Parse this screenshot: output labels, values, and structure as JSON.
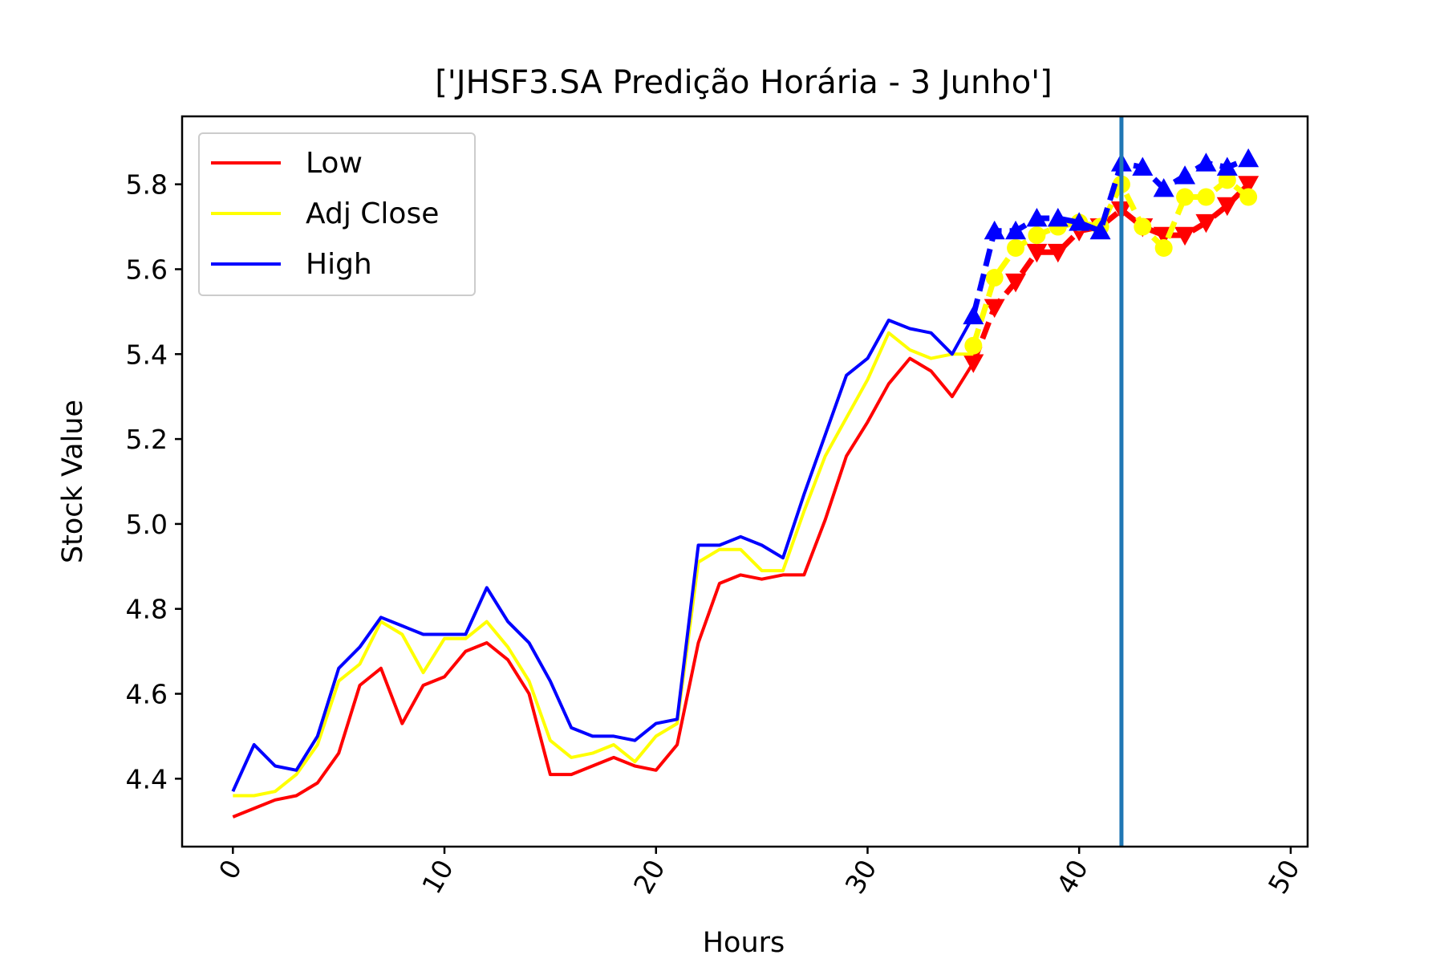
{
  "chart_data": {
    "type": "line",
    "title": "['JHSF3.SA Predição Horária - 3 Junho']",
    "xlabel": "Hours",
    "ylabel": "Stock Value",
    "xlim": [
      -2.4,
      50.8
    ],
    "ylim": [
      4.24,
      5.96
    ],
    "x_ticks": [
      0,
      10,
      20,
      30,
      40,
      50
    ],
    "x_tick_labels": [
      "0",
      "10",
      "20",
      "30",
      "40",
      "50"
    ],
    "y_ticks": [
      4.4,
      4.6,
      4.8,
      5.0,
      5.2,
      5.4,
      5.6,
      5.8
    ],
    "y_tick_labels": [
      "4.4",
      "4.6",
      "4.8",
      "5.0",
      "5.2",
      "5.4",
      "5.6",
      "5.8"
    ],
    "x_tick_rotation_deg": 60,
    "grid": false,
    "legend_position": "top-left",
    "vertical_line": {
      "x": 42,
      "color": "#1f77b4"
    },
    "series": [
      {
        "name": "Low",
        "color": "#ff0000",
        "x": [
          0,
          1,
          2,
          3,
          4,
          5,
          6,
          7,
          8,
          9,
          10,
          11,
          12,
          13,
          14,
          15,
          16,
          17,
          18,
          19,
          20,
          21,
          22,
          23,
          24,
          25,
          26,
          27,
          28,
          29,
          30,
          31,
          32,
          33,
          34,
          35
        ],
        "values": [
          4.31,
          4.33,
          4.35,
          4.36,
          4.39,
          4.46,
          4.62,
          4.66,
          4.53,
          4.62,
          4.64,
          4.7,
          4.72,
          4.68,
          4.6,
          4.41,
          4.41,
          4.43,
          4.45,
          4.43,
          4.42,
          4.48,
          4.72,
          4.86,
          4.88,
          4.87,
          4.88,
          4.88,
          5.01,
          5.16,
          5.24,
          5.33,
          5.39,
          5.36,
          5.3,
          5.38
        ],
        "prediction": {
          "marker": "triangle-down",
          "x": [
            35,
            36,
            37,
            38,
            39,
            40,
            41,
            42,
            43,
            44,
            45,
            46,
            47,
            48
          ],
          "values": [
            5.38,
            5.51,
            5.57,
            5.64,
            5.64,
            5.69,
            5.7,
            5.74,
            5.7,
            5.68,
            5.68,
            5.71,
            5.75,
            5.8
          ]
        }
      },
      {
        "name": "Adj Close",
        "color": "#ffff00",
        "x": [
          0,
          1,
          2,
          3,
          4,
          5,
          6,
          7,
          8,
          9,
          10,
          11,
          12,
          13,
          14,
          15,
          16,
          17,
          18,
          19,
          20,
          21,
          22,
          23,
          24,
          25,
          26,
          27,
          28,
          29,
          30,
          31,
          32,
          33,
          34,
          35
        ],
        "values": [
          4.36,
          4.36,
          4.37,
          4.41,
          4.48,
          4.63,
          4.67,
          4.77,
          4.74,
          4.65,
          4.73,
          4.73,
          4.77,
          4.71,
          4.63,
          4.49,
          4.45,
          4.46,
          4.48,
          4.44,
          4.5,
          4.53,
          4.91,
          4.94,
          4.94,
          4.89,
          4.89,
          5.03,
          5.16,
          5.25,
          5.34,
          5.45,
          5.41,
          5.39,
          5.4,
          5.4
        ],
        "prediction": {
          "marker": "circle",
          "x": [
            35,
            36,
            37,
            38,
            39,
            40,
            41,
            42,
            43,
            44,
            45,
            46,
            47,
            48
          ],
          "values": [
            5.42,
            5.58,
            5.65,
            5.68,
            5.7,
            5.71,
            5.7,
            5.8,
            5.7,
            5.65,
            5.77,
            5.77,
            5.81,
            5.77
          ]
        }
      },
      {
        "name": "High",
        "color": "#0000ff",
        "x": [
          0,
          1,
          2,
          3,
          4,
          5,
          6,
          7,
          8,
          9,
          10,
          11,
          12,
          13,
          14,
          15,
          16,
          17,
          18,
          19,
          20,
          21,
          22,
          23,
          24,
          25,
          26,
          27,
          28,
          29,
          30,
          31,
          32,
          33,
          34,
          35
        ],
        "values": [
          4.37,
          4.48,
          4.43,
          4.42,
          4.5,
          4.66,
          4.71,
          4.78,
          4.76,
          4.74,
          4.74,
          4.74,
          4.85,
          4.77,
          4.72,
          4.63,
          4.52,
          4.5,
          4.5,
          4.49,
          4.53,
          4.54,
          4.95,
          4.95,
          4.97,
          4.95,
          4.92,
          5.07,
          5.21,
          5.35,
          5.39,
          5.48,
          5.46,
          5.45,
          5.4,
          5.49
        ],
        "prediction": {
          "marker": "triangle-up",
          "x": [
            35,
            36,
            37,
            38,
            39,
            40,
            41,
            42,
            43,
            44,
            45,
            46,
            47,
            48
          ],
          "values": [
            5.49,
            5.69,
            5.69,
            5.72,
            5.72,
            5.71,
            5.69,
            5.85,
            5.84,
            5.79,
            5.82,
            5.85,
            5.84,
            5.86
          ]
        }
      }
    ]
  }
}
